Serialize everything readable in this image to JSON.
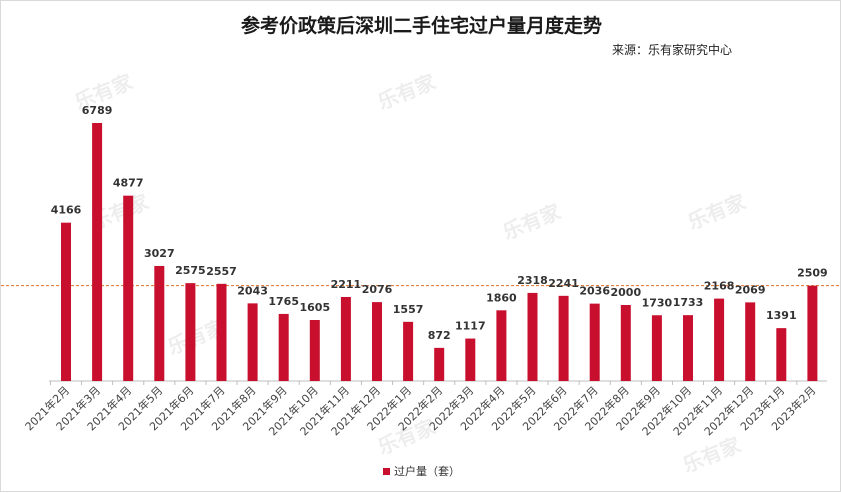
{
  "title": "参考价政策后深圳二手住宅过户量月度走势",
  "source": "来源：乐有家研究中心",
  "watermark": "乐有家",
  "colors": {
    "bar": "#c8102e",
    "refline": "#e0702a"
  },
  "chart_data": {
    "type": "bar",
    "title": "参考价政策后深圳二手住宅过户量月度走势",
    "categories": [
      "2021年2月",
      "2021年3月",
      "2021年4月",
      "2021年5月",
      "2021年6月",
      "2021年7月",
      "2021年8月",
      "2021年9月",
      "2021年10月",
      "2021年11月",
      "2021年12月",
      "2022年1月",
      "2022年2月",
      "2022年3月",
      "2022年4月",
      "2022年5月",
      "2022年6月",
      "2022年7月",
      "2022年8月",
      "2022年9月",
      "2022年10月",
      "2022年11月",
      "2022年12月",
      "2023年1月",
      "2023年2月"
    ],
    "series": [
      {
        "name": "过户量（套）",
        "values": [
          4166,
          6789,
          4877,
          3027,
          2575,
          2557,
          2043,
          1765,
          1605,
          2211,
          2076,
          1557,
          872,
          1117,
          1860,
          2318,
          2241,
          2036,
          2000,
          1730,
          1733,
          2168,
          2069,
          1391,
          2509
        ]
      }
    ],
    "reference_line": 2509,
    "ylim": [
      0,
      7500
    ],
    "grid": false,
    "legend": "bottom"
  }
}
